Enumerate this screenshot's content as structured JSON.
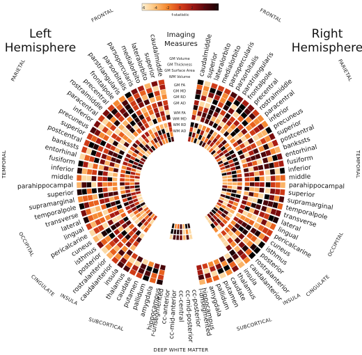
{
  "colorbar": {
    "ticks": [
      "-6",
      "-4",
      "-2",
      "0",
      "2",
      "4",
      "6"
    ],
    "title": "f-statistic",
    "stops": [
      "#fff3d6",
      "#fdc27a",
      "#f4852c",
      "#d8401a",
      "#9d1714",
      "#55070c",
      "#140004"
    ]
  },
  "hemispheres": {
    "left": [
      "Left",
      "Hemisphere"
    ],
    "right": [
      "Right",
      "Hemisphere"
    ]
  },
  "measures": {
    "heading": [
      "Imaging",
      "Measures"
    ],
    "group1": [
      "GM Volume",
      "GM Thickness",
      "GM Surface Area",
      "WM Volume"
    ],
    "group2": [
      "GM FA",
      "GM MD",
      "GM RD",
      "GM AD"
    ],
    "group3": [
      "WM FA",
      "WM MD",
      "WM RD",
      "WM AD"
    ]
  },
  "lobes": {
    "frontal": "FRONTAL",
    "parietal": "PARIETAL",
    "temporal": "TEMPORAL",
    "occipital": "OCCIPITAL",
    "cingulate": "CINGULATE",
    "insula": "INSULA",
    "subcortical": "SUBCORTICAL",
    "deep_white_matter": "DEEP WHITE MATTER"
  },
  "regions": {
    "left_cortical": [
      "caudalmiddle",
      "superior",
      "lateralorbito",
      "medialorbito",
      "parsopercularis",
      "parsorbitalis",
      "parstriangularis",
      "frontalpole",
      "precentral",
      "rostralmiddle",
      "paracentral",
      "inferior",
      "precuneus",
      "superior",
      "postcentral",
      "bankssts",
      "entorhinal",
      "fusiform",
      "inferior",
      "middle",
      "parahippocampal",
      "superior",
      "supramarginal",
      "temporalpole",
      "transverse",
      "lateral",
      "lingual",
      "pericalcarine",
      "cuneus",
      "isthmus",
      "posterior",
      "rostralanterior",
      "caudalanterior",
      "insula"
    ],
    "left_subcortical": [
      "thalamus",
      "caudate",
      "putamen",
      "pallidum",
      "amygdala",
      "hippocampus"
    ],
    "deep_white_matter": [
      "l-unsegmented",
      "cc-posterior",
      "cc-mid-posterior",
      "cc-central",
      "cc-mid-anterior",
      "cc-anterior",
      "r-unsegmented"
    ],
    "right_subcortical": [
      "hippocampus",
      "amygdala",
      "pallidum",
      "putamen",
      "caudate",
      "thalamus"
    ],
    "right_cortical": [
      "insula",
      "caudalanterior",
      "rostralanterior",
      "posterior",
      "isthmus",
      "cuneus",
      "pericalcarine",
      "lingual",
      "lateral",
      "transverse",
      "temporalpole",
      "supramarginal",
      "superior",
      "parahippocampal",
      "middle",
      "inferior",
      "fusiform",
      "entorhinal",
      "bankssts",
      "postcentral",
      "superior",
      "precuneus",
      "inferior",
      "paracentral",
      "rostralmiddle",
      "precentral",
      "frontalpole",
      "parstriangularis",
      "parsorbitalis",
      "parsopercularis",
      "medialorbito",
      "lateralorbito",
      "superior",
      "caudalmiddle"
    ]
  }
}
